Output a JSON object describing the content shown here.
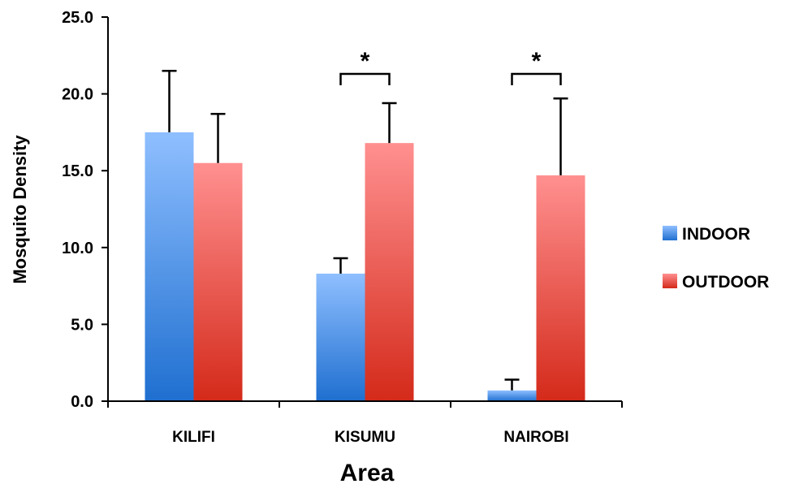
{
  "chart_data": {
    "type": "bar",
    "title": "",
    "xlabel": "Area",
    "ylabel": "Mosquito Density",
    "ylim": [
      0,
      25
    ],
    "yticks": [
      "0.0",
      "5.0",
      "10.0",
      "15.0",
      "20.0",
      "25.0"
    ],
    "categories": [
      "KILIFI",
      "KISUMU",
      "NAIROBI"
    ],
    "series": [
      {
        "name": "INDOOR",
        "values": [
          17.5,
          8.3,
          0.7
        ],
        "errors": [
          4.0,
          1.0,
          0.7
        ],
        "color_top": "#8fbfff",
        "color_bottom": "#1f6fd0"
      },
      {
        "name": "OUTDOOR",
        "values": [
          15.5,
          16.8,
          14.7
        ],
        "errors": [
          3.2,
          2.6,
          5.0
        ],
        "color_top": "#ff9090",
        "color_bottom": "#d42a1a"
      }
    ],
    "significance": [
      {
        "category": "KISUMU",
        "label": "*"
      },
      {
        "category": "NAIROBI",
        "label": "*"
      }
    ],
    "legend_position": "right",
    "grid": false
  }
}
